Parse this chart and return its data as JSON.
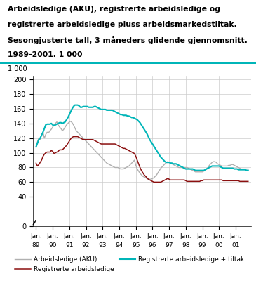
{
  "title_line1": "Arbeidsledige (AKU), registrerte arbeidsledige og",
  "title_line2": "registrerte arbeidsledige pluss arbeidsmarkedstiltak.",
  "title_line3": "Sesongjusterte tall, 3 måneders glidende gjennomsnitt.",
  "title_line4": "1989-2001. 1 000",
  "unit_label": "1 000",
  "color_aku": "#b0b0b0",
  "color_reg": "#8b1010",
  "color_tiltak": "#00b5b8",
  "color_rule": "#00b5b8",
  "legend": [
    "Arbeidsledige (AKU)",
    "Registrerte arbeidsledige",
    "Registrerte arbeidsledige + tiltak"
  ],
  "x_labels_top": [
    "Jan.",
    "Jan.",
    "Jan.",
    "Jan.",
    "Jan.",
    "Jan.",
    "Jan.",
    "Jan.",
    "Jan.",
    "Jan.",
    "Jan.",
    "Jan.",
    "Jan."
  ],
  "x_labels_bot": [
    "89",
    "90",
    "91",
    "92",
    "93",
    "94",
    "95",
    "96",
    "97",
    "98",
    "99",
    "00",
    "01"
  ],
  "yticks": [
    0,
    40,
    60,
    80,
    100,
    120,
    140,
    160,
    180,
    200
  ],
  "ylim_min": 0,
  "ylim_max": 205,
  "aku": [
    108,
    115,
    120,
    118,
    125,
    128,
    120,
    125,
    128,
    127,
    130,
    132,
    135,
    138,
    140,
    142,
    138,
    135,
    133,
    130,
    132,
    135,
    138,
    140,
    142,
    143,
    141,
    138,
    134,
    130,
    128,
    126,
    124,
    122,
    120,
    118,
    116,
    114,
    112,
    110,
    108,
    106,
    104,
    102,
    100,
    98,
    96,
    94,
    92,
    90,
    88,
    86,
    85,
    84,
    83,
    82,
    81,
    80,
    80,
    80,
    79,
    78,
    78,
    78,
    79,
    80,
    81,
    82,
    84,
    86,
    88,
    90,
    83,
    78,
    75,
    72,
    70,
    68,
    67,
    66,
    65,
    64,
    64,
    64,
    65,
    66,
    68,
    70,
    73,
    76,
    79,
    81,
    83,
    85,
    87,
    88,
    87,
    86,
    85,
    84,
    83,
    82,
    81,
    80,
    80,
    80,
    80,
    80,
    80,
    80,
    79,
    78,
    77,
    76,
    75,
    74,
    74,
    74,
    74,
    74,
    74,
    75,
    76,
    78,
    80,
    83,
    85,
    87,
    88,
    88,
    87,
    85,
    84,
    83,
    82,
    82,
    82,
    82,
    82,
    83,
    83,
    84,
    84,
    83,
    82,
    81,
    80,
    79,
    78,
    78,
    78,
    78,
    78,
    78
  ],
  "reg": [
    86,
    82,
    84,
    87,
    90,
    95,
    98,
    100,
    101,
    101,
    101,
    103,
    102,
    99,
    100,
    101,
    102,
    104,
    104,
    104,
    106,
    108,
    110,
    113,
    116,
    119,
    121,
    122,
    122,
    122,
    122,
    121,
    120,
    119,
    118,
    118,
    118,
    118,
    118,
    118,
    118,
    118,
    117,
    116,
    115,
    114,
    113,
    112,
    112,
    112,
    112,
    112,
    112,
    112,
    112,
    112,
    112,
    112,
    111,
    110,
    109,
    108,
    107,
    106,
    106,
    105,
    104,
    103,
    102,
    101,
    100,
    99,
    95,
    90,
    85,
    80,
    76,
    73,
    70,
    68,
    66,
    64,
    63,
    62,
    61,
    60,
    60,
    60,
    60,
    60,
    60,
    61,
    62,
    63,
    64,
    65,
    64,
    63,
    63,
    63,
    63,
    63,
    63,
    63,
    63,
    63,
    63,
    63,
    62,
    61,
    61,
    61,
    61,
    61,
    61,
    61,
    61,
    61,
    61,
    62,
    62,
    63,
    63,
    63,
    63,
    63,
    63,
    63,
    63,
    63,
    63,
    63,
    63,
    63,
    63,
    62,
    62,
    62,
    62,
    62,
    62,
    62,
    62,
    62,
    62,
    62,
    62,
    61,
    61,
    61,
    61,
    61,
    61,
    61
  ],
  "tiltak": [
    108,
    113,
    118,
    120,
    124,
    128,
    133,
    138,
    139,
    139,
    139,
    140,
    138,
    137,
    138,
    139,
    140,
    141,
    141,
    140,
    141,
    142,
    145,
    148,
    152,
    156,
    160,
    163,
    165,
    165,
    165,
    164,
    162,
    162,
    163,
    163,
    163,
    163,
    162,
    162,
    162,
    162,
    163,
    163,
    162,
    161,
    160,
    159,
    159,
    159,
    159,
    158,
    158,
    158,
    158,
    158,
    157,
    156,
    155,
    154,
    153,
    152,
    152,
    151,
    151,
    151,
    150,
    150,
    149,
    148,
    148,
    147,
    146,
    145,
    143,
    141,
    138,
    135,
    132,
    129,
    126,
    122,
    118,
    115,
    112,
    109,
    106,
    103,
    100,
    97,
    94,
    92,
    90,
    88,
    87,
    87,
    87,
    86,
    86,
    85,
    85,
    85,
    84,
    83,
    82,
    81,
    80,
    79,
    78,
    78,
    78,
    78,
    78,
    78,
    77,
    76,
    76,
    76,
    76,
    76,
    76,
    76,
    77,
    78,
    79,
    80,
    81,
    82,
    82,
    82,
    82,
    82,
    82,
    81,
    80,
    79,
    79,
    79,
    79,
    79,
    79,
    79,
    79,
    78,
    78,
    78,
    77,
    77,
    77,
    77,
    77,
    77,
    76,
    76
  ]
}
